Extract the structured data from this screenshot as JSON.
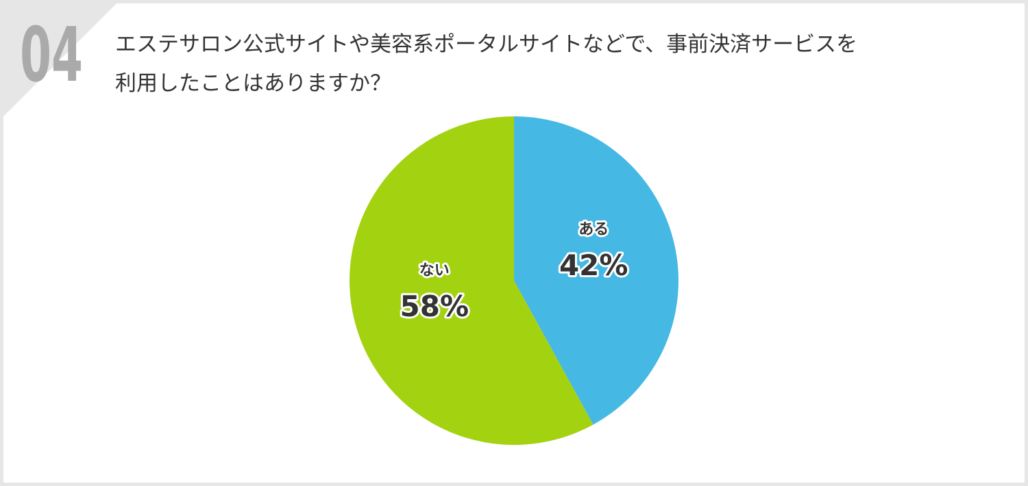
{
  "number": "04",
  "chart_data": {
    "type": "pie",
    "title": [
      "エステサロン公式サイトや美容系ポータルサイトなどで、事前決済サービスを",
      "利用したことはありますか？"
    ],
    "categories": [
      "ある",
      "ない"
    ],
    "values": [
      42,
      58
    ],
    "value_labels": [
      "42%",
      "58%"
    ],
    "colors": [
      "#45b8e3",
      "#a3d211"
    ]
  }
}
